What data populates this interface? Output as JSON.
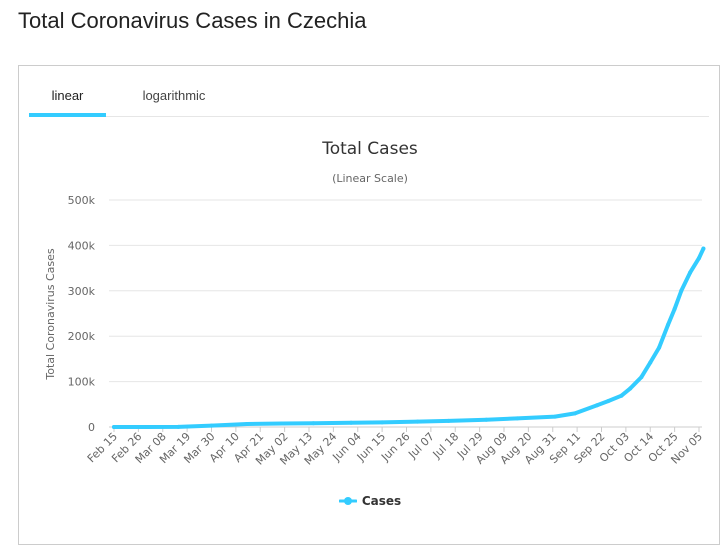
{
  "page": {
    "title": "Total Coronavirus Cases in Czechia"
  },
  "tabs": [
    {
      "label": "linear",
      "active": true
    },
    {
      "label": "logarithmic",
      "active": false
    }
  ],
  "colors": {
    "accent": "#33ccff",
    "series": "#33ccff",
    "grid": "#e6e6e6",
    "text": "#666666"
  },
  "chart_data": {
    "type": "line",
    "title": "Total Cases",
    "subtitle": "(Linear Scale)",
    "ylabel": "Total Coronavirus Cases",
    "xlabel": "",
    "ylim": [
      0,
      500000
    ],
    "y_ticks": [
      0,
      100000,
      200000,
      300000,
      400000,
      500000
    ],
    "y_tick_labels": [
      "0",
      "100k",
      "200k",
      "300k",
      "400k",
      "500k"
    ],
    "x_tick_labels": [
      "Feb 15",
      "Feb 26",
      "Mar 08",
      "Mar 19",
      "Mar 30",
      "Apr 10",
      "Apr 21",
      "May 02",
      "May 13",
      "May 24",
      "Jun 04",
      "Jun 15",
      "Jun 26",
      "Jul 07",
      "Jul 18",
      "Jul 29",
      "Aug 09",
      "Aug 20",
      "Aug 31",
      "Sep 11",
      "Sep 22",
      "Oct 03",
      "Oct 14",
      "Oct 25",
      "Nov 05"
    ],
    "legend_position": "bottom-center",
    "grid": true,
    "series": [
      {
        "name": "Cases",
        "x": [
          "Feb 15",
          "Mar 01",
          "Mar 15",
          "Mar 30",
          "Apr 15",
          "May 01",
          "May 15",
          "Jun 01",
          "Jun 15",
          "Jul 01",
          "Jul 15",
          "Aug 01",
          "Aug 15",
          "Sep 01",
          "Sep 10",
          "Sep 20",
          "Sep 25",
          "Oct 01",
          "Oct 05",
          "Oct 10",
          "Oct 14",
          "Oct 18",
          "Oct 22",
          "Oct 25",
          "Oct 28",
          "Nov 01",
          "Nov 05",
          "Nov 07"
        ],
        "values": [
          0,
          0,
          300,
          3000,
          6500,
          7700,
          8400,
          9300,
          10100,
          12000,
          13500,
          16000,
          19000,
          23000,
          30000,
          48000,
          57000,
          69000,
          85000,
          110000,
          142000,
          175000,
          225000,
          260000,
          300000,
          340000,
          372000,
          393000
        ]
      }
    ]
  }
}
